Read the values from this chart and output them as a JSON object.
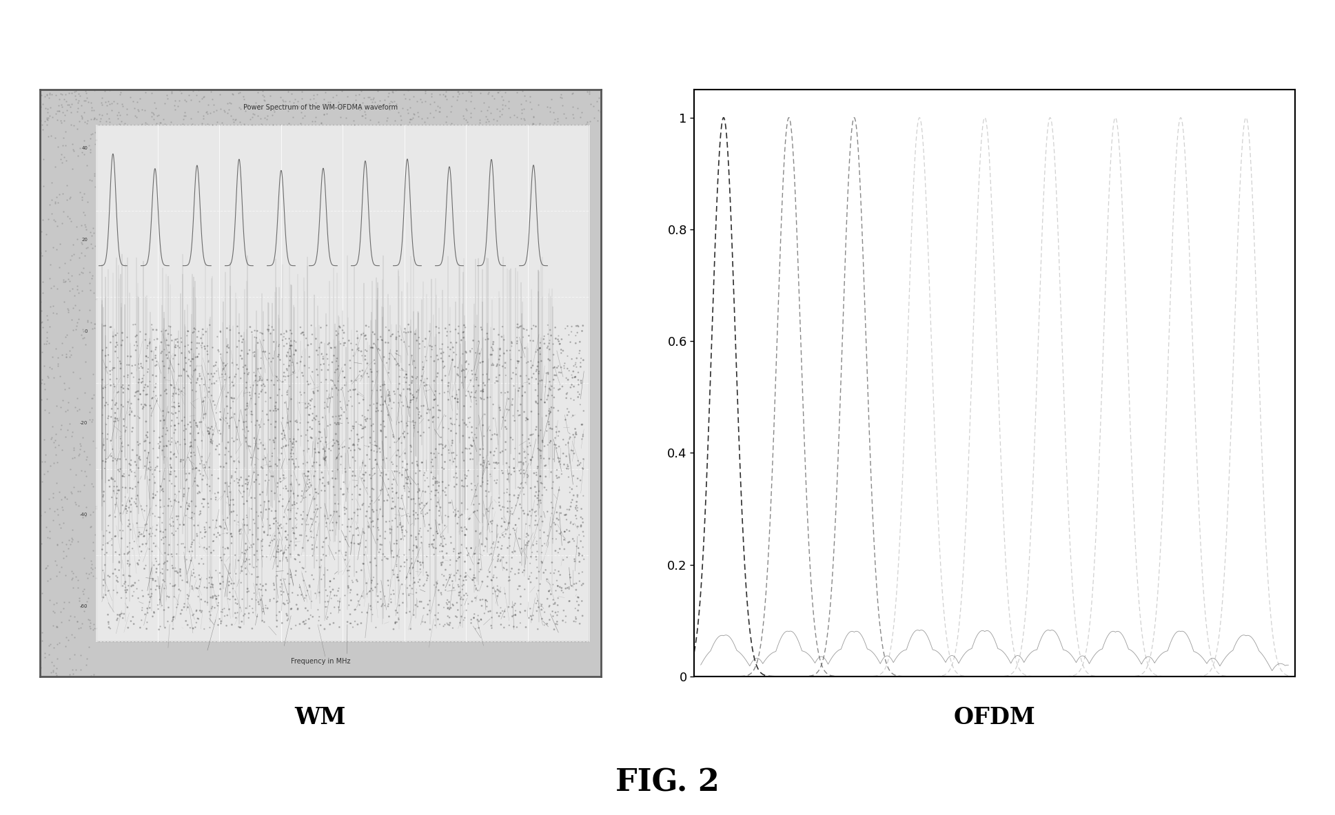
{
  "fig_label": "FIG. 2",
  "wm_label": "WM",
  "ofdm_label": "OFDM",
  "ofdm_n_carriers": 9,
  "background_color": "#ffffff",
  "wm_outer_color": "#c8c8c8",
  "wm_inner_color": "#e8e8e8",
  "ofdm_ytick_labels": [
    "0",
    "0.2",
    "0.4",
    "0.6",
    "0.8",
    "1"
  ],
  "ofdm_yticks": [
    0.0,
    0.2,
    0.4,
    0.6,
    0.8,
    1.0
  ],
  "label_fontsize": 24,
  "fig_label_fontsize": 32
}
